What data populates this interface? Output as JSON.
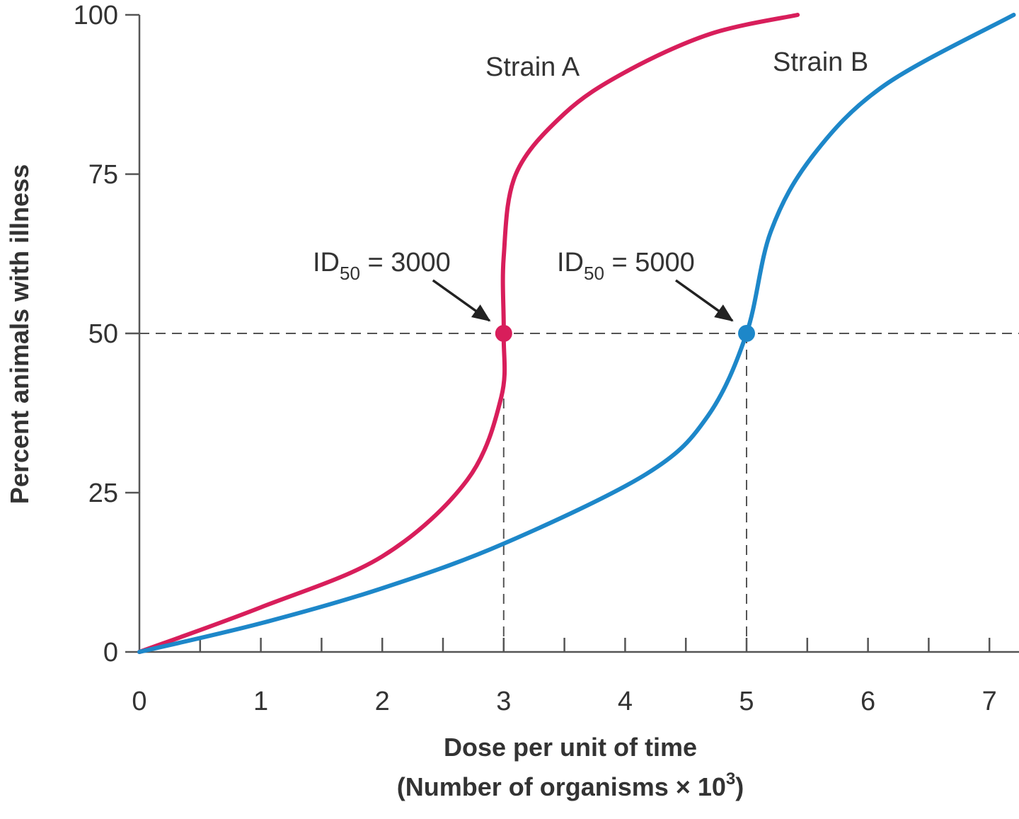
{
  "chart_data": {
    "type": "line",
    "xlabel_line1": "Dose per unit of time",
    "xlabel_line2_prefix": "(Number of organisms × 10",
    "xlabel_line2_sup": "3",
    "xlabel_line2_suffix": ")",
    "ylabel": "Percent animals with illness",
    "xlim": [
      0,
      7.2
    ],
    "ylim": [
      0,
      100
    ],
    "x_ticks": [
      "0",
      "1",
      "2",
      "3",
      "4",
      "5",
      "6",
      "7"
    ],
    "y_ticks": [
      "0",
      "25",
      "50",
      "75",
      "100"
    ],
    "grid": false,
    "reference_line_y": 50,
    "series": [
      {
        "name": "Strain A",
        "color": "#d81e5b",
        "x": [
          0,
          1,
          2,
          2.7,
          2.98,
          3.0,
          3.0,
          3.1,
          3.5,
          4.0,
          4.7,
          5.42
        ],
        "y": [
          0,
          7,
          15,
          27,
          40,
          50,
          62,
          75,
          84.5,
          91,
          97,
          100
        ]
      },
      {
        "name": "Strain B",
        "color": "#1d87c9",
        "x": [
          0,
          1,
          2,
          3,
          4.18,
          4.68,
          5.0,
          5.2,
          5.55,
          6.14,
          7.2
        ],
        "y": [
          0,
          4.5,
          10,
          17,
          28,
          37,
          50,
          66,
          78,
          89,
          100
        ]
      }
    ],
    "annotations": [
      {
        "prefix": "ID",
        "sub": "50",
        "text": " = 3000",
        "x": 3,
        "y": 50,
        "color": "#d81e5b"
      },
      {
        "prefix": "ID",
        "sub": "50",
        "text": " = 5000",
        "x": 5,
        "y": 50,
        "color": "#1d87c9"
      }
    ]
  }
}
